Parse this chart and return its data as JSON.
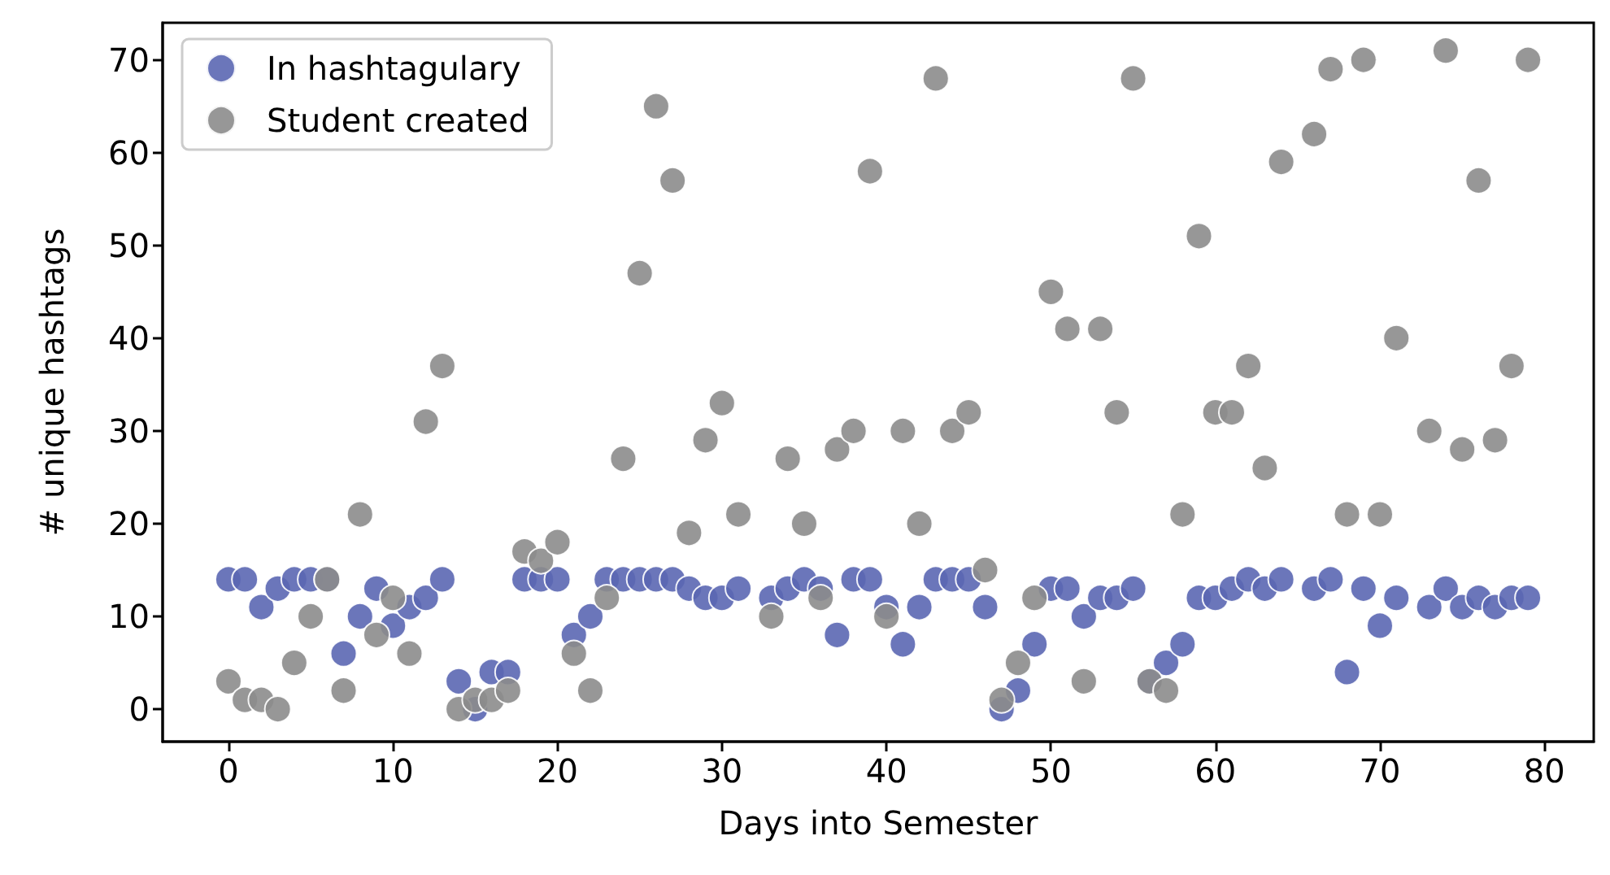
{
  "chart_data": {
    "type": "scatter",
    "xlabel": "Days into Semester",
    "ylabel": "# unique hashtags",
    "xlim": [
      -4,
      83
    ],
    "ylim": [
      -3.5,
      74
    ],
    "xticks": [
      0,
      10,
      20,
      30,
      40,
      50,
      60,
      70,
      80
    ],
    "yticks": [
      0,
      10,
      20,
      30,
      40,
      50,
      60,
      70
    ],
    "grid": false,
    "legend": "top left",
    "marker": "circle",
    "series": [
      {
        "name": "In hashtagulary",
        "color": "#5b67b3",
        "x": [
          0,
          1,
          2,
          3,
          4,
          5,
          6,
          7,
          8,
          9,
          10,
          11,
          12,
          13,
          14,
          15,
          16,
          17,
          18,
          19,
          20,
          21,
          22,
          23,
          24,
          25,
          26,
          27,
          28,
          29,
          30,
          31,
          33,
          34,
          35,
          36,
          37,
          38,
          39,
          40,
          41,
          42,
          43,
          44,
          45,
          46,
          47,
          48,
          49,
          50,
          51,
          52,
          53,
          54,
          55,
          56,
          57,
          58,
          59,
          60,
          61,
          62,
          63,
          64,
          66,
          67,
          68,
          69,
          70,
          71,
          73,
          74,
          75,
          76,
          77,
          78,
          79
        ],
        "values": [
          14,
          14,
          11,
          13,
          14,
          14,
          14,
          6,
          10,
          13,
          9,
          11,
          12,
          14,
          3,
          0,
          4,
          4,
          14,
          14,
          14,
          8,
          10,
          14,
          14,
          14,
          14,
          14,
          13,
          12,
          12,
          13,
          12,
          13,
          14,
          13,
          8,
          14,
          14,
          11,
          7,
          11,
          14,
          14,
          14,
          11,
          0,
          2,
          7,
          13,
          13,
          10,
          12,
          12,
          13,
          3,
          5,
          7,
          12,
          12,
          13,
          14,
          13,
          14,
          13,
          14,
          4,
          13,
          9,
          12,
          11,
          13,
          11,
          12,
          11,
          12,
          12
        ]
      },
      {
        "name": "Student created",
        "color": "#8c8c8c",
        "x": [
          0,
          1,
          2,
          3,
          4,
          5,
          6,
          7,
          8,
          9,
          10,
          11,
          12,
          13,
          14,
          15,
          16,
          17,
          18,
          19,
          20,
          21,
          22,
          23,
          24,
          25,
          26,
          27,
          28,
          29,
          30,
          31,
          33,
          34,
          35,
          36,
          37,
          38,
          39,
          40,
          41,
          42,
          43,
          44,
          45,
          46,
          47,
          48,
          49,
          50,
          51,
          52,
          53,
          54,
          55,
          56,
          57,
          58,
          59,
          60,
          61,
          62,
          63,
          64,
          66,
          67,
          68,
          69,
          70,
          71,
          73,
          74,
          75,
          76,
          77,
          78,
          79
        ],
        "values": [
          3,
          1,
          1,
          0,
          5,
          10,
          14,
          2,
          21,
          8,
          12,
          6,
          31,
          37,
          0,
          1,
          1,
          2,
          17,
          16,
          18,
          6,
          2,
          12,
          27,
          47,
          65,
          57,
          19,
          29,
          33,
          21,
          10,
          27,
          20,
          12,
          28,
          30,
          58,
          10,
          30,
          20,
          68,
          30,
          32,
          15,
          1,
          5,
          12,
          45,
          41,
          3,
          41,
          32,
          68,
          3,
          2,
          21,
          51,
          32,
          32,
          37,
          26,
          59,
          62,
          69,
          21,
          70,
          21,
          40,
          30,
          71,
          28,
          57,
          29,
          37,
          70
        ]
      }
    ]
  }
}
